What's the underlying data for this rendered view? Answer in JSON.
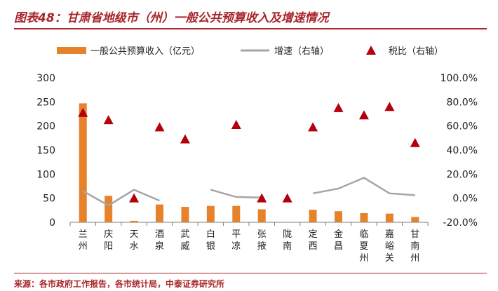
{
  "figure_title": "图表48：甘肃省地级市（州）一般公共预算收入及增速情况",
  "source_note": "来源：各市政府工作报告，各市统计局，中泰证券研究所",
  "colors": {
    "bar": "#e8822a",
    "line": "#a6a6a6",
    "marker": "#b3000c",
    "accent": "#a8262c"
  },
  "chart_data": {
    "type": "bar",
    "categories": [
      "兰州",
      "庆阳",
      "天水",
      "酒泉",
      "武威",
      "白银",
      "平凉",
      "张掖",
      "陇南",
      "定西",
      "金昌",
      "临夏州",
      "嘉峪关",
      "甘南州"
    ],
    "category_labels": [
      [
        "兰",
        "州"
      ],
      [
        "庆",
        "阳"
      ],
      [
        "天",
        "水"
      ],
      [
        "酒",
        "泉"
      ],
      [
        "武",
        "威"
      ],
      [
        "白",
        "银"
      ],
      [
        "平",
        "凉"
      ],
      [
        "张",
        "掖"
      ],
      [
        "陇",
        "南"
      ],
      [
        "定",
        "西"
      ],
      [
        "金",
        "昌"
      ],
      [
        "临",
        "夏",
        "州"
      ],
      [
        "嘉",
        "峪",
        "关"
      ],
      [
        "甘",
        "南",
        "州"
      ]
    ],
    "legend": {
      "placement": "top"
    },
    "series": [
      {
        "name": "一般公共预算收入（亿元）",
        "type": "bar",
        "axis": "left",
        "values": [
          247,
          55,
          3,
          37,
          32,
          34,
          34,
          27,
          0,
          26,
          23,
          19,
          18,
          11
        ]
      },
      {
        "name": "增速（右轴）",
        "type": "line",
        "axis": "right",
        "values": [
          6.0,
          -6.0,
          7.0,
          -2.0,
          null,
          7.0,
          1.0,
          0.5,
          null,
          4.0,
          8.0,
          17.0,
          4.0,
          2.5
        ]
      },
      {
        "name": "税比（右轴）",
        "type": "scatter",
        "marker": "triangle",
        "axis": "right",
        "values": [
          71.0,
          65.0,
          0.0,
          59.0,
          49.0,
          null,
          61.0,
          0.0,
          0.0,
          59.0,
          75.0,
          69.0,
          76.0,
          46.0
        ]
      }
    ],
    "y_left": {
      "min": 0,
      "max": 300,
      "ticks": [
        "0",
        "50",
        "100",
        "150",
        "200",
        "250",
        "300"
      ]
    },
    "y_right": {
      "min": -20,
      "max": 100,
      "ticks": [
        "-20.0%",
        "0.0%",
        "20.0%",
        "40.0%",
        "60.0%",
        "80.0%",
        "100.0%"
      ]
    },
    "grid": false
  }
}
